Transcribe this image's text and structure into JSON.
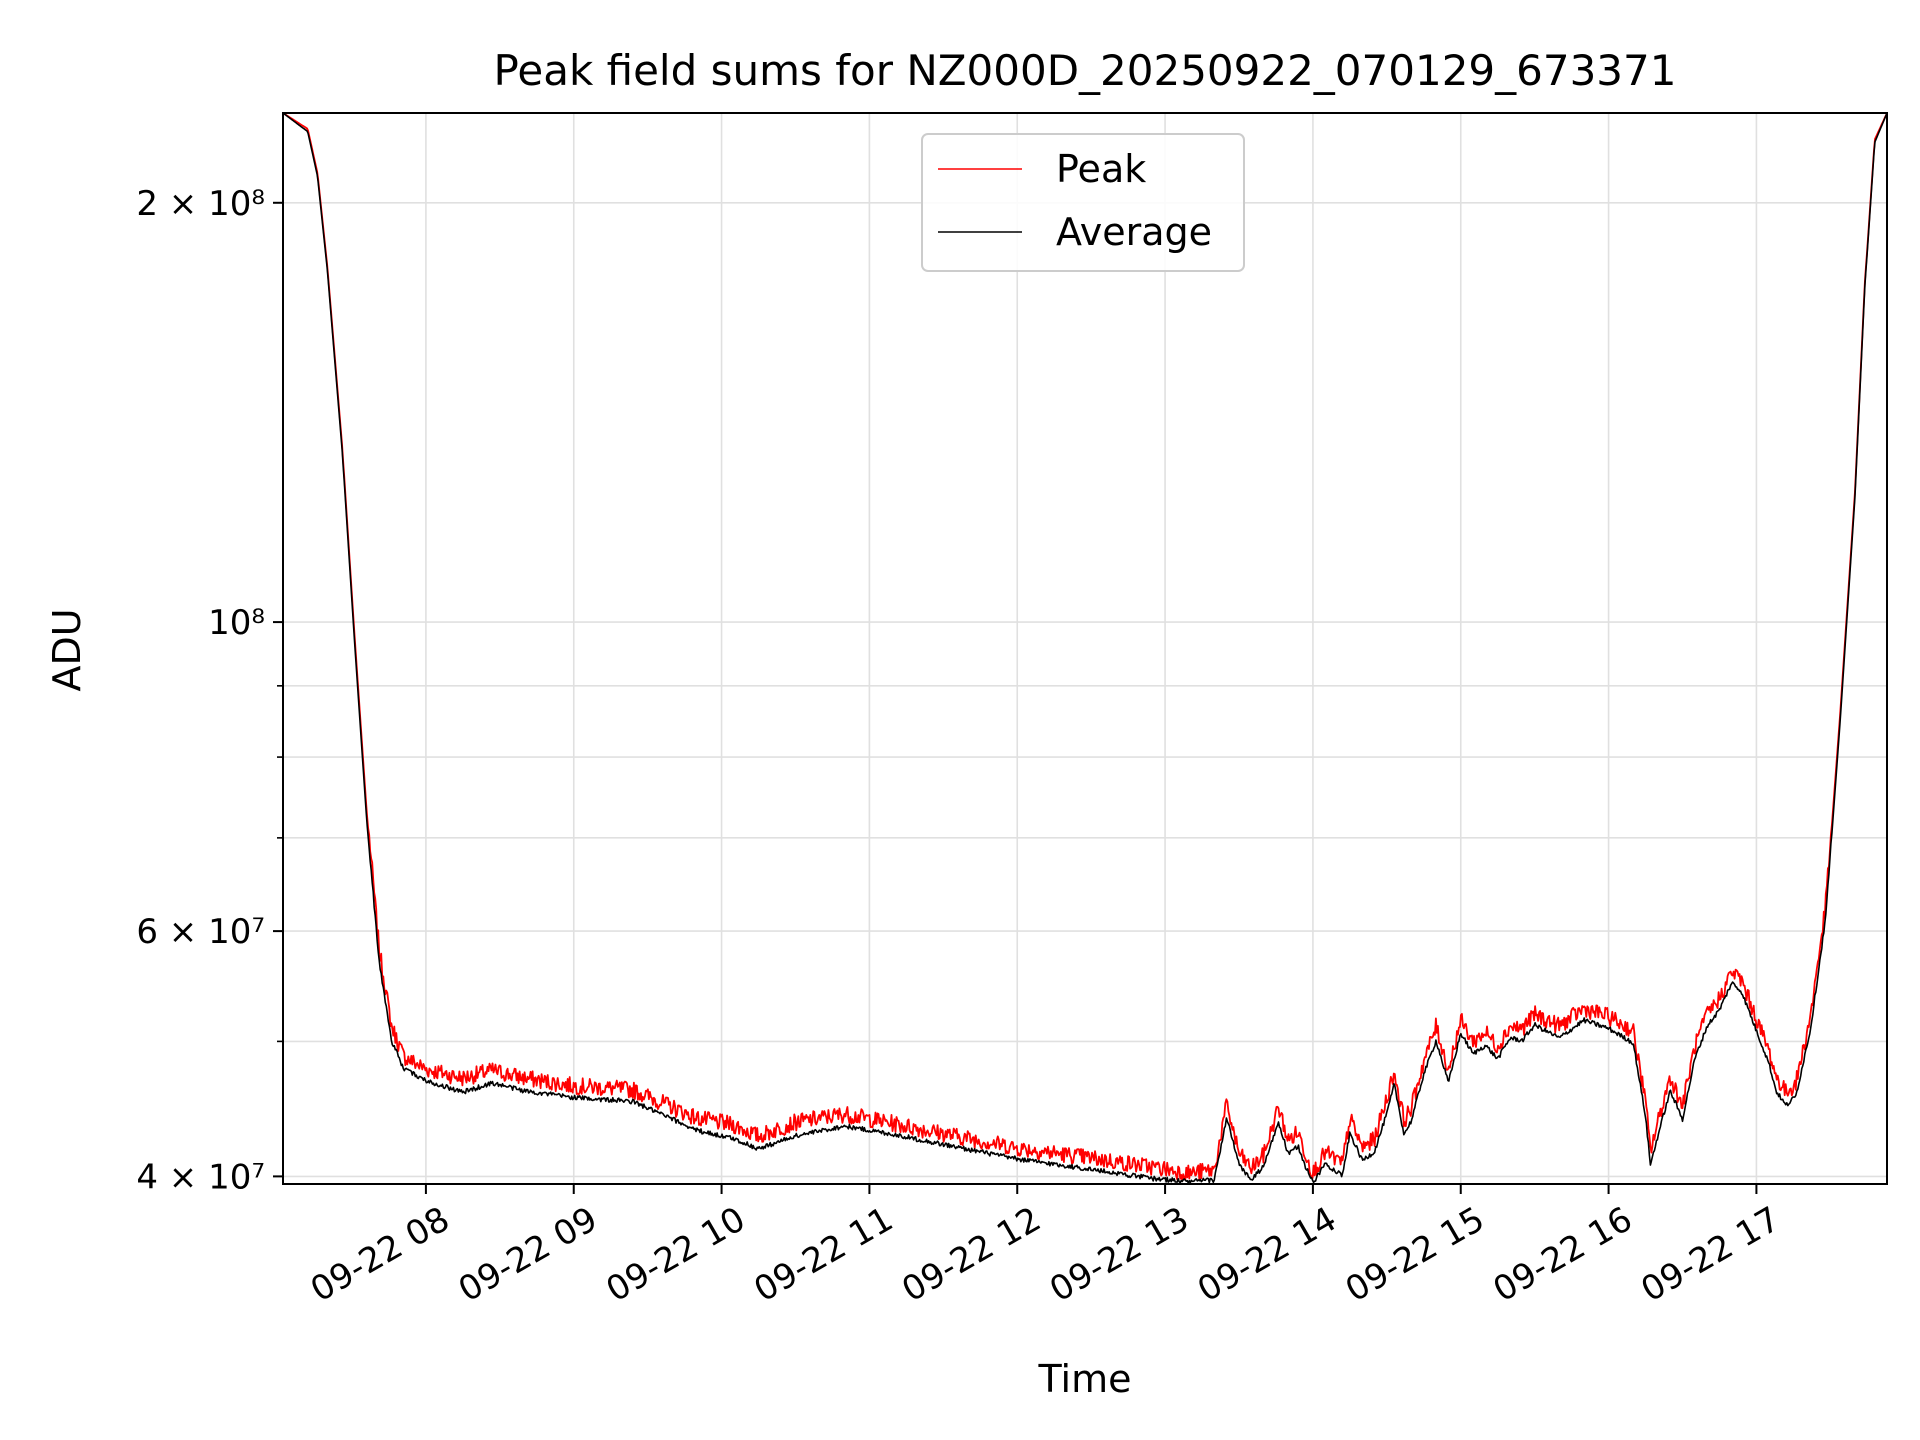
{
  "chart_data": {
    "type": "line",
    "title": "Peak field sums for NZ000D_20250922_070129_673371",
    "xlabel": "Time",
    "ylabel": "ADU",
    "y_scale": "log",
    "grid": true,
    "legend_position": "top-center",
    "x_range": [
      "2025-09-22 07:02",
      "2025-09-22 17:53"
    ],
    "y_range": [
      39500000,
      232000000
    ],
    "x_ticks": [
      "09-22 08",
      "09-22 09",
      "09-22 10",
      "09-22 11",
      "09-22 12",
      "09-22 13",
      "09-22 14",
      "09-22 15",
      "09-22 16",
      "09-22 17"
    ],
    "y_ticks": [
      {
        "value": 40000000,
        "label": "4 × 10⁷"
      },
      {
        "value": 60000000,
        "label": "6 × 10⁷"
      },
      {
        "value": 100000000,
        "label": "10⁸"
      },
      {
        "value": 200000000,
        "label": "2 × 10⁸"
      }
    ],
    "series": [
      {
        "name": "Peak",
        "color": "#ff0000",
        "noise": 0.014,
        "x": [
          "2025-09-22 07:02",
          "2025-09-22 07:12",
          "2025-09-22 07:16",
          "2025-09-22 07:20",
          "2025-09-22 07:26",
          "2025-09-22 07:31",
          "2025-09-22 07:36",
          "2025-09-22 07:41",
          "2025-09-22 07:46",
          "2025-09-22 07:51",
          "2025-09-22 08:00",
          "2025-09-22 08:15",
          "2025-09-22 08:27",
          "2025-09-22 08:40",
          "2025-09-22 09:00",
          "2025-09-22 09:24",
          "2025-09-22 09:40",
          "2025-09-22 09:50",
          "2025-09-22 10:05",
          "2025-09-22 10:15",
          "2025-09-22 10:30",
          "2025-09-22 10:50",
          "2025-09-22 11:10",
          "2025-09-22 11:30",
          "2025-09-22 12:00",
          "2025-09-22 12:30",
          "2025-09-22 12:55",
          "2025-09-22 13:10",
          "2025-09-22 13:20",
          "2025-09-22 13:25",
          "2025-09-22 13:30",
          "2025-09-22 13:35",
          "2025-09-22 13:40",
          "2025-09-22 13:46",
          "2025-09-22 13:50",
          "2025-09-22 13:54",
          "2025-09-22 13:57",
          "2025-09-22 14:00",
          "2025-09-22 14:05",
          "2025-09-22 14:12",
          "2025-09-22 14:15",
          "2025-09-22 14:20",
          "2025-09-22 14:25",
          "2025-09-22 14:30",
          "2025-09-22 14:33",
          "2025-09-22 14:37",
          "2025-09-22 14:40",
          "2025-09-22 14:45",
          "2025-09-22 14:50",
          "2025-09-22 14:55",
          "2025-09-22 15:00",
          "2025-09-22 15:05",
          "2025-09-22 15:10",
          "2025-09-22 15:15",
          "2025-09-22 15:20",
          "2025-09-22 15:25",
          "2025-09-22 15:30",
          "2025-09-22 15:40",
          "2025-09-22 15:50",
          "2025-09-22 16:00",
          "2025-09-22 16:10",
          "2025-09-22 16:15",
          "2025-09-22 16:17",
          "2025-09-22 16:20",
          "2025-09-22 16:25",
          "2025-09-22 16:30",
          "2025-09-22 16:35",
          "2025-09-22 16:40",
          "2025-09-22 16:45",
          "2025-09-22 16:50",
          "2025-09-22 16:54",
          "2025-09-22 17:00",
          "2025-09-22 17:05",
          "2025-09-22 17:08",
          "2025-09-22 17:12",
          "2025-09-22 17:16",
          "2025-09-22 17:22",
          "2025-09-22 17:28",
          "2025-09-22 17:34",
          "2025-09-22 17:40",
          "2025-09-22 17:44",
          "2025-09-22 17:48",
          "2025-09-22 17:53"
        ],
        "y": [
          232000000,
          226000000,
          210000000,
          180000000,
          134000000,
          98000000,
          73000000,
          58000000,
          51000000,
          48500000,
          47500000,
          46800000,
          47400000,
          46800000,
          46200000,
          45900000,
          44600000,
          43800000,
          43300000,
          42500000,
          43500000,
          44100000,
          43400000,
          42700000,
          41700000,
          41000000,
          40400000,
          40000000,
          40200000,
          44800000,
          41300000,
          40300000,
          41200000,
          44600000,
          42200000,
          42800000,
          41300000,
          40000000,
          41400000,
          40600000,
          43800000,
          41700000,
          42300000,
          45300000,
          47300000,
          43600000,
          44600000,
          48100000,
          51000000,
          47400000,
          51500000,
          49700000,
          50500000,
          49300000,
          51000000,
          50800000,
          52000000,
          51000000,
          52500000,
          51800000,
          50600000,
          45000000,
          41500000,
          43500000,
          46900000,
          44700000,
          49300000,
          52000000,
          53400000,
          55800000,
          55000000,
          51600000,
          49000000,
          46900000,
          45700000,
          46400000,
          51900000,
          62000000,
          86000000,
          124000000,
          175000000,
          222000000,
          232000000
        ]
      },
      {
        "name": "Average",
        "color": "#000000",
        "noise": 0.004,
        "x": [
          "2025-09-22 07:02",
          "2025-09-22 07:12",
          "2025-09-22 07:16",
          "2025-09-22 07:20",
          "2025-09-22 07:26",
          "2025-09-22 07:31",
          "2025-09-22 07:36",
          "2025-09-22 07:41",
          "2025-09-22 07:46",
          "2025-09-22 07:51",
          "2025-09-22 08:00",
          "2025-09-22 08:15",
          "2025-09-22 08:27",
          "2025-09-22 08:40",
          "2025-09-22 09:00",
          "2025-09-22 09:24",
          "2025-09-22 09:40",
          "2025-09-22 09:50",
          "2025-09-22 10:05",
          "2025-09-22 10:15",
          "2025-09-22 10:30",
          "2025-09-22 10:50",
          "2025-09-22 11:10",
          "2025-09-22 11:30",
          "2025-09-22 12:00",
          "2025-09-22 12:30",
          "2025-09-22 12:55",
          "2025-09-22 13:10",
          "2025-09-22 13:20",
          "2025-09-22 13:25",
          "2025-09-22 13:30",
          "2025-09-22 13:35",
          "2025-09-22 13:40",
          "2025-09-22 13:46",
          "2025-09-22 13:50",
          "2025-09-22 13:54",
          "2025-09-22 13:57",
          "2025-09-22 14:00",
          "2025-09-22 14:05",
          "2025-09-22 14:12",
          "2025-09-22 14:15",
          "2025-09-22 14:20",
          "2025-09-22 14:25",
          "2025-09-22 14:30",
          "2025-09-22 14:33",
          "2025-09-22 14:37",
          "2025-09-22 14:40",
          "2025-09-22 14:45",
          "2025-09-22 14:50",
          "2025-09-22 14:55",
          "2025-09-22 15:00",
          "2025-09-22 15:05",
          "2025-09-22 15:10",
          "2025-09-22 15:15",
          "2025-09-22 15:20",
          "2025-09-22 15:25",
          "2025-09-22 15:30",
          "2025-09-22 15:40",
          "2025-09-22 15:50",
          "2025-09-22 16:00",
          "2025-09-22 16:10",
          "2025-09-22 16:15",
          "2025-09-22 16:17",
          "2025-09-22 16:20",
          "2025-09-22 16:25",
          "2025-09-22 16:30",
          "2025-09-22 16:35",
          "2025-09-22 16:40",
          "2025-09-22 16:45",
          "2025-09-22 16:50",
          "2025-09-22 16:54",
          "2025-09-22 17:00",
          "2025-09-22 17:05",
          "2025-09-22 17:08",
          "2025-09-22 17:12",
          "2025-09-22 17:16",
          "2025-09-22 17:22",
          "2025-09-22 17:28",
          "2025-09-22 17:34",
          "2025-09-22 17:40",
          "2025-09-22 17:44",
          "2025-09-22 17:48",
          "2025-09-22 17:53"
        ],
        "y": [
          232000000,
          225000000,
          209000000,
          179000000,
          133000000,
          97000000,
          72000000,
          57000000,
          50000000,
          47700000,
          46800000,
          45900000,
          46600000,
          46000000,
          45500000,
          45200000,
          43900000,
          43100000,
          42500000,
          41800000,
          42700000,
          43400000,
          42800000,
          42100000,
          41100000,
          40400000,
          39800000,
          39600000,
          39700000,
          44000000,
          40700000,
          39700000,
          40600000,
          43700000,
          41400000,
          42000000,
          40600000,
          39500000,
          40800000,
          40000000,
          42900000,
          41000000,
          41600000,
          44300000,
          46500000,
          42800000,
          43800000,
          47300000,
          50000000,
          46600000,
          50600000,
          48900000,
          49600000,
          48500000,
          50200000,
          50000000,
          51300000,
          50200000,
          51700000,
          51000000,
          49800000,
          44100000,
          40700000,
          42700000,
          46000000,
          43900000,
          48500000,
          51200000,
          52600000,
          55000000,
          54200000,
          50800000,
          48200000,
          46000000,
          44900000,
          45600000,
          51000000,
          61000000,
          85000000,
          123000000,
          174000000,
          221000000,
          232000000
        ]
      }
    ]
  }
}
